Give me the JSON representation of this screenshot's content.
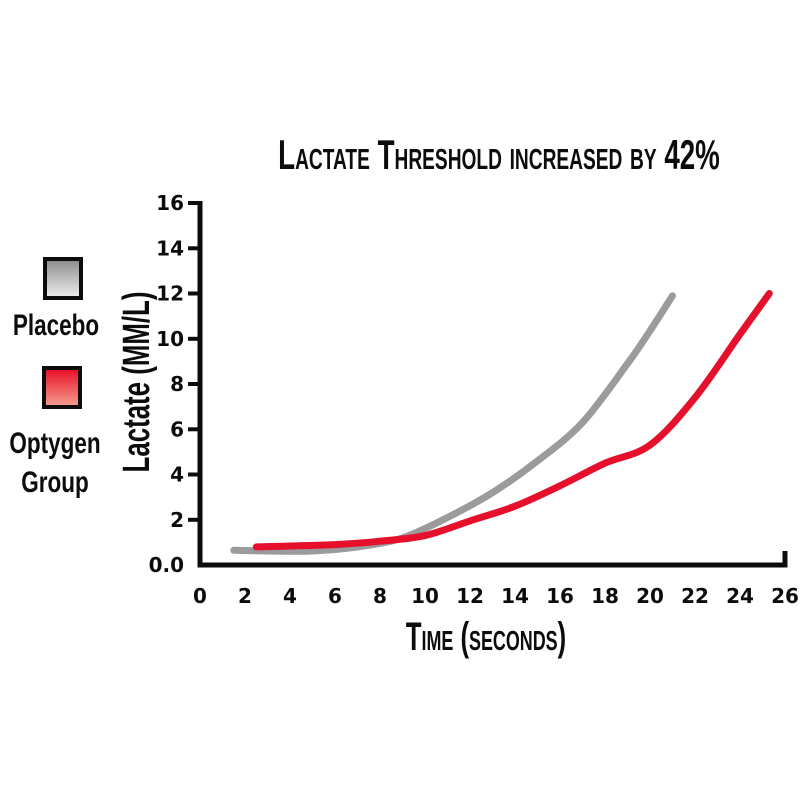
{
  "legend": {
    "items": [
      {
        "id": "placebo",
        "label": "Placebo",
        "lines": [
          "Placebo"
        ],
        "color_top": "#8f8f90",
        "color_bottom": "#ebebeb"
      },
      {
        "id": "optygen",
        "label": "Optygen Group",
        "lines": [
          "Optygen",
          "Group"
        ],
        "color_top": "#e8122b",
        "color_bottom": "#f4998b"
      }
    ]
  },
  "colors": {
    "axis": "#0c0c0c",
    "text": "#0c0c0c",
    "placebo_line": "#9b9a9c",
    "optygen_line": "#e6102d"
  },
  "chart_data": {
    "type": "line",
    "title": "Lactate Threshold increased by 42%",
    "xlabel": "Time (seconds)",
    "ylabel": "Lactate (MM/L)",
    "xlim": [
      0,
      26
    ],
    "ylim": [
      0,
      16
    ],
    "grid": false,
    "legend_position": "left",
    "x_tick_values": [
      0,
      2,
      4,
      6,
      8,
      10,
      12,
      14,
      16,
      18,
      20,
      22,
      24,
      26
    ],
    "x_tick_labels": [
      "0",
      "2",
      "4",
      "6",
      "8",
      "10",
      "12",
      "14",
      "16",
      "18",
      "20",
      "22",
      "24",
      "26"
    ],
    "y_tick_values": [
      0,
      2,
      4,
      6,
      8,
      10,
      12,
      14,
      16
    ],
    "y_tick_labels": [
      "0.0",
      "2",
      "4",
      "6",
      "8",
      "10",
      "12",
      "14",
      "16"
    ],
    "series": [
      {
        "name": "Placebo",
        "color": "#9b9a9c",
        "x": [
          1.5,
          3,
          5,
          7,
          9,
          11,
          13,
          15,
          17,
          19,
          20,
          21
        ],
        "y": [
          0.65,
          0.62,
          0.62,
          0.8,
          1.2,
          2.1,
          3.2,
          4.6,
          6.3,
          8.9,
          10.35,
          11.9
        ]
      },
      {
        "name": "Optygen Group",
        "color": "#e6102d",
        "x": [
          2.5,
          4,
          6,
          8,
          10,
          12,
          14,
          16,
          18,
          20,
          22,
          24,
          25.3
        ],
        "y": [
          0.8,
          0.84,
          0.9,
          1.05,
          1.3,
          1.95,
          2.6,
          3.5,
          4.5,
          5.3,
          7.4,
          10.2,
          12.0
        ]
      }
    ]
  }
}
